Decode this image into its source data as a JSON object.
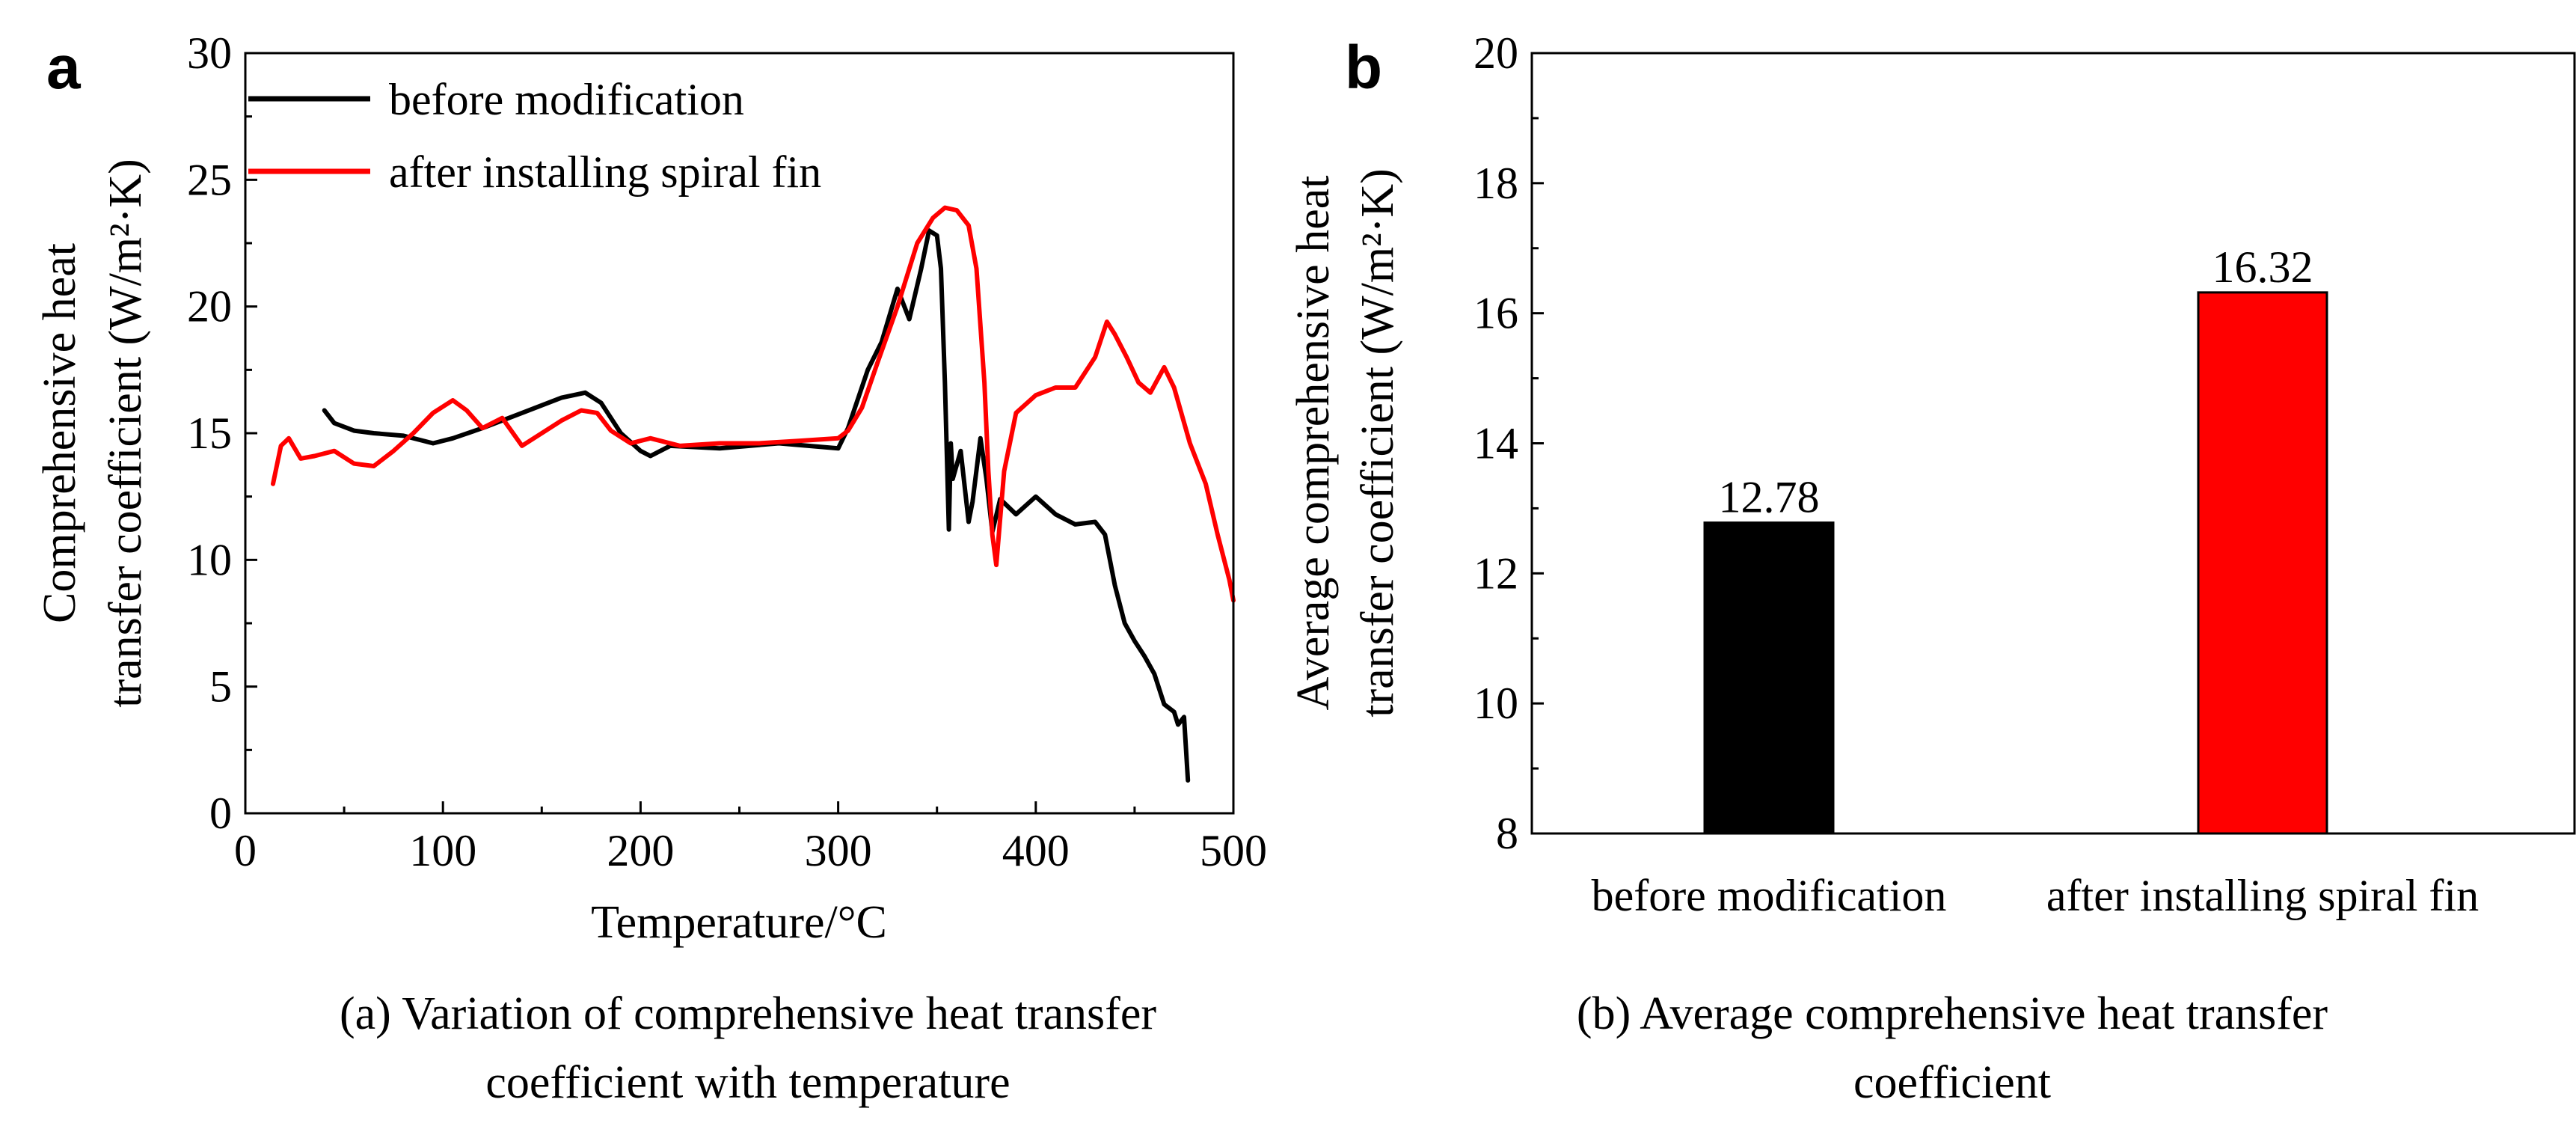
{
  "chart_data": [
    {
      "panel": "a",
      "type": "line",
      "xlabel": "Temperature/°C",
      "ylabel_line1": "Comprehensive heat",
      "ylabel_line2": "transfer coefficient (W/m²·K)",
      "xlim": [
        0,
        500
      ],
      "ylim": [
        0,
        30
      ],
      "xticks": [
        0,
        100,
        200,
        300,
        400,
        500
      ],
      "yticks": [
        0,
        5,
        10,
        15,
        20,
        25,
        30
      ],
      "legend_position": "top-left",
      "caption_line1": "(a) Variation of comprehensive heat transfer",
      "caption_line2": "coefficient with temperature",
      "series": [
        {
          "name": "before modification",
          "color": "#000000",
          "x": [
            40,
            45,
            55,
            65,
            80,
            95,
            105,
            120,
            140,
            160,
            172,
            180,
            190,
            200,
            205,
            215,
            240,
            270,
            300,
            305,
            315,
            322,
            330,
            336,
            342,
            346,
            350,
            352,
            354,
            356,
            357,
            358,
            362,
            366,
            368,
            372,
            375,
            378,
            382,
            390,
            400,
            410,
            420,
            430,
            435,
            440,
            445,
            450,
            455,
            460,
            465,
            470,
            472,
            475,
            477
          ],
          "y": [
            15.9,
            15.4,
            15.1,
            15.0,
            14.9,
            14.6,
            14.8,
            15.2,
            15.8,
            16.4,
            16.6,
            16.2,
            15.0,
            14.3,
            14.1,
            14.5,
            14.4,
            14.6,
            14.4,
            15.2,
            17.5,
            18.6,
            20.7,
            19.5,
            21.5,
            23.0,
            22.8,
            21.5,
            17.0,
            11.2,
            14.6,
            13.2,
            14.3,
            11.5,
            12.3,
            14.8,
            13.2,
            11.1,
            12.4,
            11.8,
            12.5,
            11.8,
            11.4,
            11.5,
            11.0,
            9.0,
            7.5,
            6.8,
            6.2,
            5.5,
            4.3,
            4.0,
            3.5,
            3.8,
            1.3
          ]
        },
        {
          "name": "after installing spiral fin",
          "color": "#ff0000",
          "x": [
            14,
            18,
            22,
            28,
            35,
            45,
            55,
            65,
            75,
            85,
            95,
            105,
            112,
            120,
            130,
            140,
            150,
            160,
            170,
            178,
            185,
            195,
            205,
            220,
            240,
            260,
            280,
            300,
            305,
            312,
            320,
            330,
            340,
            348,
            354,
            360,
            366,
            370,
            374,
            376,
            378,
            380,
            384,
            390,
            400,
            410,
            420,
            430,
            436,
            440,
            446,
            452,
            458,
            465,
            470,
            478,
            486,
            492,
            498,
            500
          ],
          "y": [
            13.0,
            14.5,
            14.8,
            14.0,
            14.1,
            14.3,
            13.8,
            13.7,
            14.3,
            15.0,
            15.8,
            16.3,
            15.9,
            15.2,
            15.6,
            14.5,
            15.0,
            15.5,
            15.9,
            15.8,
            15.1,
            14.6,
            14.8,
            14.5,
            14.6,
            14.6,
            14.7,
            14.8,
            15.1,
            16.0,
            17.8,
            20.0,
            22.5,
            23.5,
            23.9,
            23.8,
            23.2,
            21.5,
            17.0,
            13.5,
            11.0,
            9.8,
            13.5,
            15.8,
            16.5,
            16.8,
            16.8,
            18.0,
            19.4,
            18.9,
            18.0,
            17.0,
            16.6,
            17.6,
            16.8,
            14.6,
            13.0,
            11.0,
            9.2,
            8.4
          ]
        }
      ]
    },
    {
      "panel": "b",
      "type": "bar",
      "ylabel_line1": "Average comprehensive heat",
      "ylabel_line2": "transfer coefficient (W/m²·K)",
      "ylim": [
        8,
        20
      ],
      "yticks": [
        8,
        10,
        12,
        14,
        16,
        18,
        20
      ],
      "categories": [
        "before modification",
        "after installing spiral fin"
      ],
      "values": [
        12.78,
        16.32
      ],
      "value_labels": [
        "12.78",
        "16.32"
      ],
      "colors": [
        "#000000",
        "#ff0000"
      ],
      "caption_line1": "(b) Average comprehensive heat transfer",
      "caption_line2": "coefficient"
    }
  ]
}
